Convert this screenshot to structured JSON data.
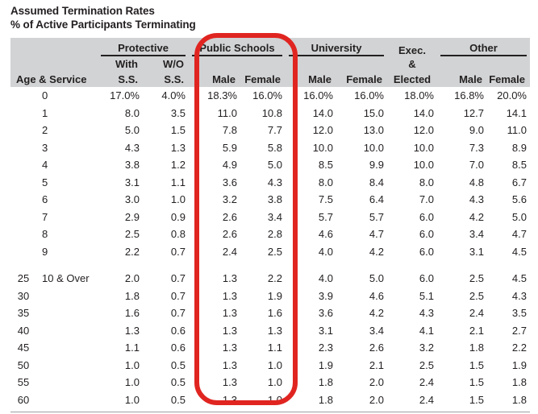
{
  "page": {
    "title_line1": "Assumed Termination Rates",
    "title_line2": "% of Active Participants Terminating"
  },
  "colors": {
    "header_bg": "#d1d3d4",
    "text": "#231f20",
    "highlight": "#e02521",
    "border": "#9b9da0"
  },
  "table": {
    "header": {
      "age_service": "Age & Service",
      "groups": {
        "protective": {
          "label": "Protective",
          "sub1": [
            "With",
            "W/O"
          ],
          "sub2": [
            "S.S.",
            "S.S."
          ]
        },
        "public_schools": {
          "label": "Public Schools",
          "sub2": [
            "Male",
            "Female"
          ],
          "highlighted": true
        },
        "university": {
          "label": "University",
          "sub2": [
            "Male",
            "Female"
          ]
        },
        "exec": {
          "line1": "Exec.",
          "line2": "&",
          "line3": "Elected"
        },
        "other": {
          "label": "Other",
          "sub2": [
            "Male",
            "Female"
          ]
        }
      }
    },
    "rows": [
      {
        "age": "",
        "service": "0",
        "values": [
          "17.0%",
          "4.0%",
          "18.3%",
          "16.0%",
          "16.0%",
          "16.0%",
          "18.0%",
          "16.8%",
          "20.0%"
        ]
      },
      {
        "age": "",
        "service": "1",
        "values": [
          "8.0",
          "3.5",
          "11.0",
          "10.8",
          "14.0",
          "15.0",
          "14.0",
          "12.7",
          "14.1"
        ]
      },
      {
        "age": "",
        "service": "2",
        "values": [
          "5.0",
          "1.5",
          "7.8",
          "7.7",
          "12.0",
          "13.0",
          "12.0",
          "9.0",
          "11.0"
        ]
      },
      {
        "age": "",
        "service": "3",
        "values": [
          "4.3",
          "1.3",
          "5.9",
          "5.8",
          "10.0",
          "10.0",
          "10.0",
          "7.3",
          "8.9"
        ]
      },
      {
        "age": "",
        "service": "4",
        "values": [
          "3.8",
          "1.2",
          "4.9",
          "5.0",
          "8.5",
          "9.9",
          "10.0",
          "7.0",
          "8.5"
        ]
      },
      {
        "age": "",
        "service": "5",
        "values": [
          "3.1",
          "1.1",
          "3.6",
          "4.3",
          "8.0",
          "8.4",
          "8.0",
          "4.8",
          "6.7"
        ]
      },
      {
        "age": "",
        "service": "6",
        "values": [
          "3.0",
          "1.0",
          "3.2",
          "3.8",
          "7.5",
          "6.4",
          "7.0",
          "4.3",
          "5.6"
        ]
      },
      {
        "age": "",
        "service": "7",
        "values": [
          "2.9",
          "0.9",
          "2.6",
          "3.4",
          "5.7",
          "5.7",
          "6.0",
          "4.2",
          "5.0"
        ]
      },
      {
        "age": "",
        "service": "8",
        "values": [
          "2.5",
          "0.8",
          "2.6",
          "2.8",
          "4.6",
          "4.7",
          "6.0",
          "3.4",
          "4.7"
        ]
      },
      {
        "age": "",
        "service": "9",
        "values": [
          "2.2",
          "0.7",
          "2.4",
          "2.5",
          "4.0",
          "4.2",
          "6.0",
          "3.1",
          "4.5"
        ]
      },
      {
        "age": "25",
        "service": "10 & Over",
        "gap_before": true,
        "values": [
          "2.0",
          "0.7",
          "1.3",
          "2.2",
          "4.0",
          "5.0",
          "6.0",
          "2.5",
          "4.5"
        ]
      },
      {
        "age": "30",
        "service": "",
        "values": [
          "1.8",
          "0.7",
          "1.3",
          "1.9",
          "3.9",
          "4.6",
          "5.1",
          "2.5",
          "4.3"
        ]
      },
      {
        "age": "35",
        "service": "",
        "values": [
          "1.6",
          "0.7",
          "1.3",
          "1.6",
          "3.6",
          "4.2",
          "4.3",
          "2.4",
          "3.5"
        ]
      },
      {
        "age": "40",
        "service": "",
        "values": [
          "1.3",
          "0.6",
          "1.3",
          "1.3",
          "3.1",
          "3.4",
          "4.1",
          "2.1",
          "2.7"
        ]
      },
      {
        "age": "45",
        "service": "",
        "values": [
          "1.1",
          "0.6",
          "1.3",
          "1.1",
          "2.3",
          "2.6",
          "3.2",
          "1.8",
          "2.2"
        ]
      },
      {
        "age": "50",
        "service": "",
        "values": [
          "1.0",
          "0.5",
          "1.3",
          "1.0",
          "1.9",
          "2.1",
          "2.5",
          "1.5",
          "1.9"
        ]
      },
      {
        "age": "55",
        "service": "",
        "values": [
          "1.0",
          "0.5",
          "1.3",
          "1.0",
          "1.8",
          "2.0",
          "2.4",
          "1.5",
          "1.8"
        ]
      },
      {
        "age": "60",
        "service": "",
        "values": [
          "1.0",
          "0.5",
          "1.3",
          "1.0",
          "1.8",
          "2.0",
          "2.4",
          "1.5",
          "1.8"
        ]
      }
    ]
  }
}
